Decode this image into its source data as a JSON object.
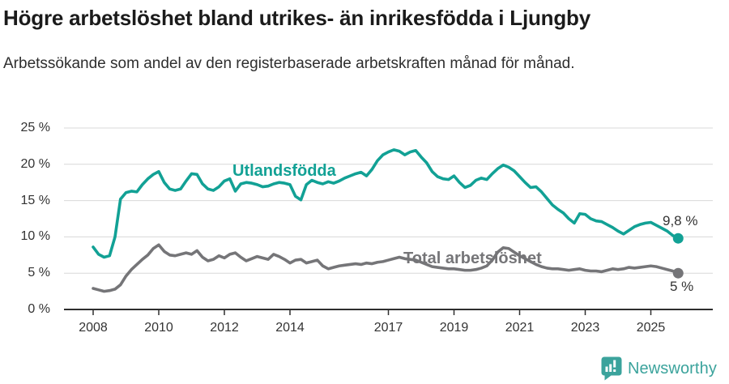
{
  "header": {
    "title": "Högre arbetslöshet bland utrikes- än inrikesfödda i Ljungby",
    "subtitle": "Arbetssökande som andel av den registerbaserade arbetskraften månad för månad."
  },
  "chart_data": {
    "type": "line",
    "title": "Högre arbetslöshet bland utrikes- än inrikesfödda i Ljungby",
    "subtitle": "Arbetssökande som andel av den registerbaserade arbetskraften månad för månad.",
    "unit": "%",
    "x_start_year": 2008,
    "points_per_year": 6,
    "xlim": [
      2007.2,
      2026.2
    ],
    "ylim": [
      0,
      27
    ],
    "grid": "horizontal",
    "legend_position": "inline-labels",
    "colors": {
      "grid": "#d8d8d8",
      "axis": "#2e2e2e",
      "tick_text": "#333333"
    },
    "y_axis": {
      "ticks": [
        {
          "value": 0,
          "label": "0 %"
        },
        {
          "value": 5,
          "label": "5 %"
        },
        {
          "value": 10,
          "label": "10 %"
        },
        {
          "value": 15,
          "label": "15 %"
        },
        {
          "value": 20,
          "label": "20 %"
        },
        {
          "value": 25,
          "label": "25 %"
        }
      ]
    },
    "x_axis": {
      "ticks": [
        {
          "year": 2008,
          "label": "2008"
        },
        {
          "year": 2010,
          "label": "2010"
        },
        {
          "year": 2012,
          "label": "2012"
        },
        {
          "year": 2014,
          "label": "2014"
        },
        {
          "year": 2017,
          "label": "2017"
        },
        {
          "year": 2019,
          "label": "2019"
        },
        {
          "year": 2021,
          "label": "2021"
        },
        {
          "year": 2023,
          "label": "2023"
        },
        {
          "year": 2025,
          "label": "2025"
        }
      ]
    },
    "series": [
      {
        "name": "Utlandsfödda",
        "label": "Utlandsfödda",
        "color": "#12A195",
        "end_value": 9.8,
        "end_label": "9,8 %",
        "values": [
          8.6,
          7.6,
          7.2,
          7.4,
          10.0,
          15.2,
          16.1,
          16.3,
          16.2,
          17.2,
          18.0,
          18.6,
          19.0,
          17.5,
          16.6,
          16.4,
          16.6,
          17.7,
          18.7,
          18.6,
          17.3,
          16.6,
          16.4,
          16.9,
          17.7,
          18.0,
          16.3,
          17.3,
          17.5,
          17.4,
          17.2,
          16.9,
          17.0,
          17.3,
          17.5,
          17.4,
          17.2,
          15.6,
          15.1,
          17.2,
          17.8,
          17.5,
          17.3,
          17.6,
          17.4,
          17.7,
          18.1,
          18.4,
          18.7,
          18.9,
          18.4,
          19.3,
          20.5,
          21.3,
          21.7,
          22.0,
          21.8,
          21.3,
          21.7,
          21.9,
          21.0,
          20.2,
          19.0,
          18.3,
          18.0,
          17.9,
          18.4,
          17.5,
          16.8,
          17.1,
          17.8,
          18.1,
          17.9,
          18.7,
          19.4,
          19.9,
          19.6,
          19.1,
          18.3,
          17.5,
          16.8,
          16.9,
          16.2,
          15.3,
          14.4,
          13.8,
          13.3,
          12.5,
          11.9,
          13.2,
          13.1,
          12.5,
          12.2,
          12.1,
          11.7,
          11.3,
          10.8,
          10.4,
          10.9,
          11.4,
          11.7,
          11.9,
          12.0,
          11.6,
          11.2,
          10.8,
          10.2,
          9.8
        ]
      },
      {
        "name": "Total arbetslöshet",
        "label": "Total arbetslöshet",
        "color": "#757578",
        "end_value": 5,
        "end_label": "5 %",
        "values": [
          2.9,
          2.7,
          2.5,
          2.6,
          2.8,
          3.4,
          4.6,
          5.5,
          6.2,
          6.9,
          7.5,
          8.4,
          8.9,
          8.0,
          7.5,
          7.4,
          7.6,
          7.8,
          7.6,
          8.1,
          7.2,
          6.7,
          6.9,
          7.4,
          7.1,
          7.6,
          7.8,
          7.2,
          6.7,
          7.0,
          7.3,
          7.1,
          6.9,
          7.6,
          7.3,
          6.9,
          6.4,
          6.8,
          6.9,
          6.4,
          6.6,
          6.8,
          6.0,
          5.6,
          5.8,
          6.0,
          6.1,
          6.2,
          6.3,
          6.2,
          6.4,
          6.3,
          6.5,
          6.6,
          6.8,
          7.0,
          7.2,
          7.0,
          6.9,
          6.8,
          6.5,
          6.2,
          5.9,
          5.8,
          5.7,
          5.6,
          5.6,
          5.5,
          5.4,
          5.4,
          5.5,
          5.7,
          6.0,
          6.8,
          7.9,
          8.5,
          8.4,
          7.9,
          7.4,
          7.0,
          6.6,
          6.2,
          5.9,
          5.7,
          5.6,
          5.6,
          5.5,
          5.4,
          5.5,
          5.6,
          5.4,
          5.3,
          5.3,
          5.2,
          5.4,
          5.6,
          5.5,
          5.6,
          5.8,
          5.7,
          5.8,
          5.9,
          6.0,
          5.9,
          5.7,
          5.5,
          5.3,
          5.0
        ]
      }
    ]
  },
  "footer": {
    "brand": "Newsworthy",
    "brand_color": "#3BA39C"
  }
}
